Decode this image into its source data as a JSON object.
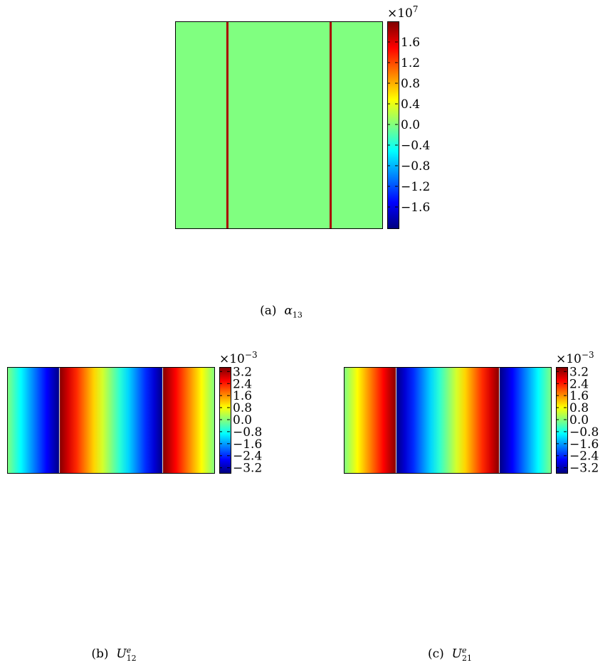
{
  "chart_data": [
    {
      "type": "heatmap",
      "id": "a",
      "caption_prefix": "(a)",
      "caption_symbol": "α",
      "caption_subscript": "13",
      "caption_superscript": "",
      "colormap": "jet",
      "colorbar": {
        "multiplier_base": "×10",
        "multiplier_exponent": "7",
        "range": [
          -2.0,
          2.0
        ],
        "ticks": [
          1.6,
          1.2,
          0.8,
          0.4,
          0.0,
          -0.4,
          -0.8,
          -1.2,
          -1.6
        ],
        "tick_labels": [
          "1.6",
          "1.2",
          "0.8",
          "0.4",
          "0.0",
          "−0.4",
          "−0.8",
          "−1.2",
          "−1.6"
        ]
      },
      "field": {
        "x_range": [
          0,
          1
        ],
        "profile": "zero field with two thin vertical lines of high positive value",
        "lines_x": [
          0.25,
          0.75
        ],
        "line_value": 1.8,
        "background_value": 0.0
      }
    },
    {
      "type": "heatmap",
      "id": "b",
      "caption_prefix": "(b)",
      "caption_symbol": "U",
      "caption_subscript": "12",
      "caption_superscript": "e",
      "colormap": "jet",
      "colorbar": {
        "multiplier_base": "×10",
        "multiplier_exponent": "−3",
        "range": [
          -3.5,
          3.5
        ],
        "ticks": [
          3.2,
          2.4,
          1.6,
          0.8,
          0.0,
          -0.8,
          -1.6,
          -2.4,
          -3.2
        ],
        "tick_labels": [
          "3.2",
          "2.4",
          "1.6",
          "0.8",
          "0.0",
          "−0.8",
          "−1.6",
          "−2.4",
          "−3.2"
        ]
      },
      "field": {
        "x_range": [
          0,
          1
        ],
        "profile": "piecewise linear in x, varies only along x",
        "breakpoints_x": [
          0.0,
          0.25,
          0.25,
          0.75,
          0.75,
          1.0
        ],
        "values": [
          0.0,
          -3.5,
          3.5,
          -3.5,
          3.5,
          0.0
        ],
        "discontinuity_lines_x": [
          0.25,
          0.75
        ]
      }
    },
    {
      "type": "heatmap",
      "id": "c",
      "caption_prefix": "(c)",
      "caption_symbol": "U",
      "caption_subscript": "21",
      "caption_superscript": "e",
      "colormap": "jet",
      "colorbar": {
        "multiplier_base": "×10",
        "multiplier_exponent": "−3",
        "range": [
          -3.5,
          3.5
        ],
        "ticks": [
          3.2,
          2.4,
          1.6,
          0.8,
          0.0,
          -0.8,
          -1.6,
          -2.4,
          -3.2
        ],
        "tick_labels": [
          "3.2",
          "2.4",
          "1.6",
          "0.8",
          "0.0",
          "−0.8",
          "−1.6",
          "−2.4",
          "−3.2"
        ]
      },
      "field": {
        "x_range": [
          0,
          1
        ],
        "profile": "piecewise linear in x, varies only along x",
        "breakpoints_x": [
          0.0,
          0.25,
          0.25,
          0.75,
          0.75,
          1.0
        ],
        "values": [
          0.0,
          3.5,
          -3.5,
          3.5,
          -3.5,
          0.0
        ],
        "discontinuity_lines_x": [
          0.25,
          0.75
        ]
      }
    }
  ]
}
